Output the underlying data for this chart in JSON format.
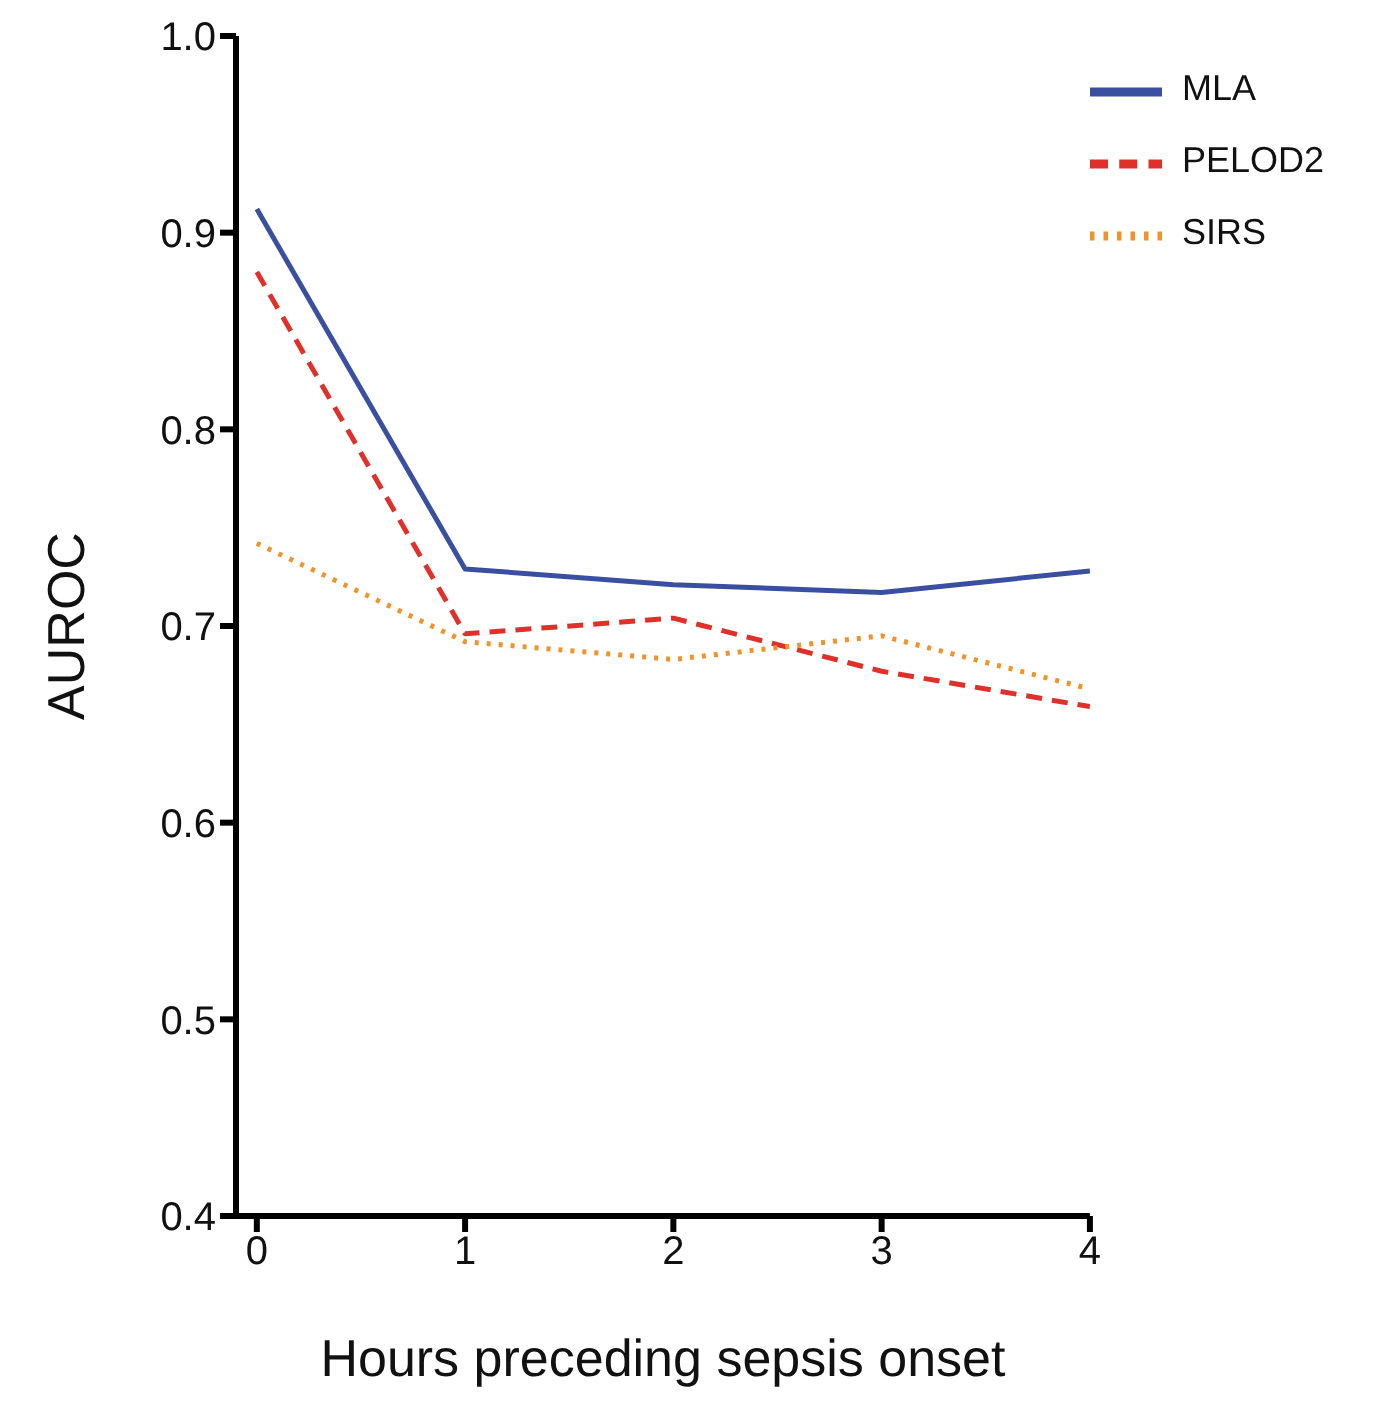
{
  "chart_data": {
    "type": "line",
    "xlabel": "Hours preceding sepsis onset",
    "ylabel": "AUROC",
    "x": [
      0,
      1,
      2,
      3,
      4
    ],
    "series": [
      {
        "name": "MLA",
        "color": "#3a4fa0",
        "line_style": "solid",
        "values": [
          0.912,
          0.729,
          0.721,
          0.717,
          0.728
        ]
      },
      {
        "name": "PELOD2",
        "color": "#e0302a",
        "line_style": "dashed",
        "values": [
          0.88,
          0.696,
          0.704,
          0.677,
          0.659
        ]
      },
      {
        "name": "SIRS",
        "color": "#f0932b",
        "line_style": "dotted",
        "values": [
          0.742,
          0.692,
          0.683,
          0.695,
          0.668
        ]
      }
    ],
    "xlim": [
      -0.1,
      4
    ],
    "xticks": [
      0,
      1,
      2,
      3,
      4
    ],
    "ylim": [
      0.4,
      1.0
    ],
    "yticks": [
      0.4,
      0.5,
      0.6,
      0.7,
      0.8,
      0.9,
      {
        "value": 1.0,
        "label": "1.0"
      }
    ],
    "grid": false,
    "legend": "top right",
    "marker": "none"
  }
}
